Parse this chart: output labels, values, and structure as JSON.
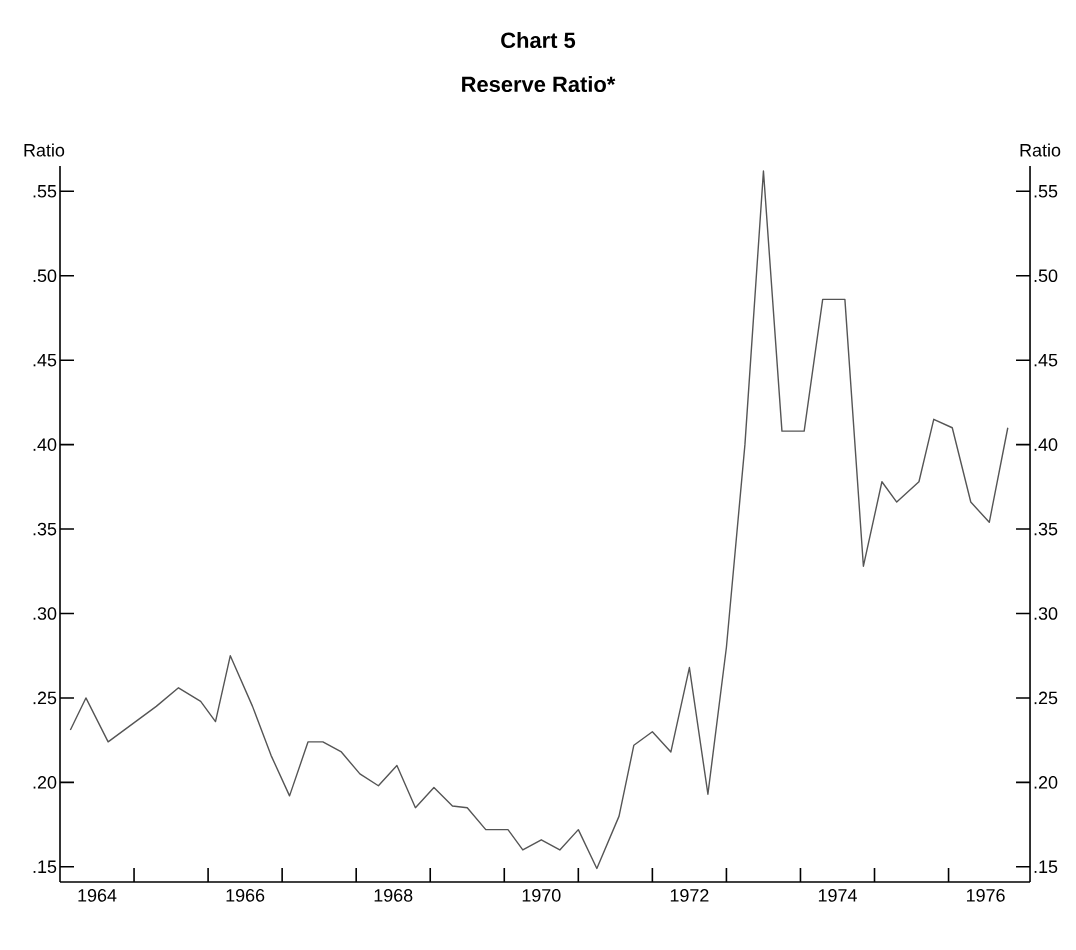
{
  "chart_data": {
    "type": "line",
    "title": "Chart 5",
    "subtitle": "Reserve Ratio*",
    "ylabel": "Ratio",
    "y2label": "Ratio",
    "x": [
      1964.14,
      1964.35,
      1964.65,
      1965.3,
      1965.6,
      1965.9,
      1966.1,
      1966.3,
      1966.6,
      1966.85,
      1967.1,
      1967.35,
      1967.55,
      1967.8,
      1968.05,
      1968.3,
      1968.55,
      1968.8,
      1969.05,
      1969.3,
      1969.5,
      1969.75,
      1970.05,
      1970.25,
      1970.5,
      1970.75,
      1971.0,
      1971.25,
      1971.55,
      1971.75,
      1972.0,
      1972.25,
      1972.5,
      1972.75,
      1973.0,
      1973.25,
      1973.5,
      1973.75,
      1974.05,
      1974.3,
      1974.6,
      1974.85,
      1975.1,
      1975.3,
      1975.6,
      1975.8,
      1976.05,
      1976.3,
      1976.55,
      1976.8
    ],
    "values": [
      0.231,
      0.25,
      0.224,
      0.245,
      0.256,
      0.248,
      0.236,
      0.275,
      0.245,
      0.216,
      0.192,
      0.224,
      0.224,
      0.218,
      0.205,
      0.198,
      0.21,
      0.185,
      0.197,
      0.186,
      0.185,
      0.172,
      0.172,
      0.16,
      0.166,
      0.16,
      0.172,
      0.149,
      0.18,
      0.222,
      0.23,
      0.218,
      0.268,
      0.193,
      0.28,
      0.4,
      0.562,
      0.408,
      0.408,
      0.486,
      0.486,
      0.328,
      0.378,
      0.366,
      0.378,
      0.415,
      0.41,
      0.366,
      0.354,
      0.41
    ],
    "color": "#555555",
    "marker": "none",
    "line_style": "solid",
    "xlim": [
      1964,
      1977.1
    ],
    "xticks": [
      {
        "value": 1964.5,
        "label": "1964"
      },
      {
        "value": 1965,
        "label": null
      },
      {
        "value": 1966,
        "label": null
      },
      {
        "value": 1966.5,
        "label": "1966"
      },
      {
        "value": 1967,
        "label": null
      },
      {
        "value": 1968,
        "label": null
      },
      {
        "value": 1968.5,
        "label": "1968"
      },
      {
        "value": 1969,
        "label": null
      },
      {
        "value": 1970,
        "label": null
      },
      {
        "value": 1970.5,
        "label": "1970"
      },
      {
        "value": 1971,
        "label": null
      },
      {
        "value": 1972,
        "label": null
      },
      {
        "value": 1972.5,
        "label": "1972"
      },
      {
        "value": 1973,
        "label": null
      },
      {
        "value": 1974,
        "label": null
      },
      {
        "value": 1974.5,
        "label": "1974"
      },
      {
        "value": 1975,
        "label": null
      },
      {
        "value": 1976,
        "label": null
      },
      {
        "value": 1976.5,
        "label": "1976"
      }
    ],
    "ylim": [
      0.141,
      0.565
    ],
    "yticks": [
      {
        "value": 0.15,
        "label": ".15"
      },
      {
        "value": 0.2,
        "label": ".20"
      },
      {
        "value": 0.25,
        "label": ".25"
      },
      {
        "value": 0.3,
        "label": ".30"
      },
      {
        "value": 0.35,
        "label": ".35"
      },
      {
        "value": 0.4,
        "label": ".40"
      },
      {
        "value": 0.45,
        "label": ".45"
      },
      {
        "value": 0.5,
        "label": ".50"
      },
      {
        "value": 0.55,
        "label": ".55"
      }
    ],
    "y2lim": [
      0.141,
      0.565
    ],
    "y2ticks": [
      {
        "value": 0.15,
        "label": ".15"
      },
      {
        "value": 0.2,
        "label": ".20"
      },
      {
        "value": 0.25,
        "label": ".25"
      },
      {
        "value": 0.3,
        "label": ".30"
      },
      {
        "value": 0.35,
        "label": ".35"
      },
      {
        "value": 0.4,
        "label": ".40"
      },
      {
        "value": 0.45,
        "label": ".45"
      },
      {
        "value": 0.5,
        "label": ".50"
      },
      {
        "value": 0.55,
        "label": ".55"
      }
    ]
  }
}
